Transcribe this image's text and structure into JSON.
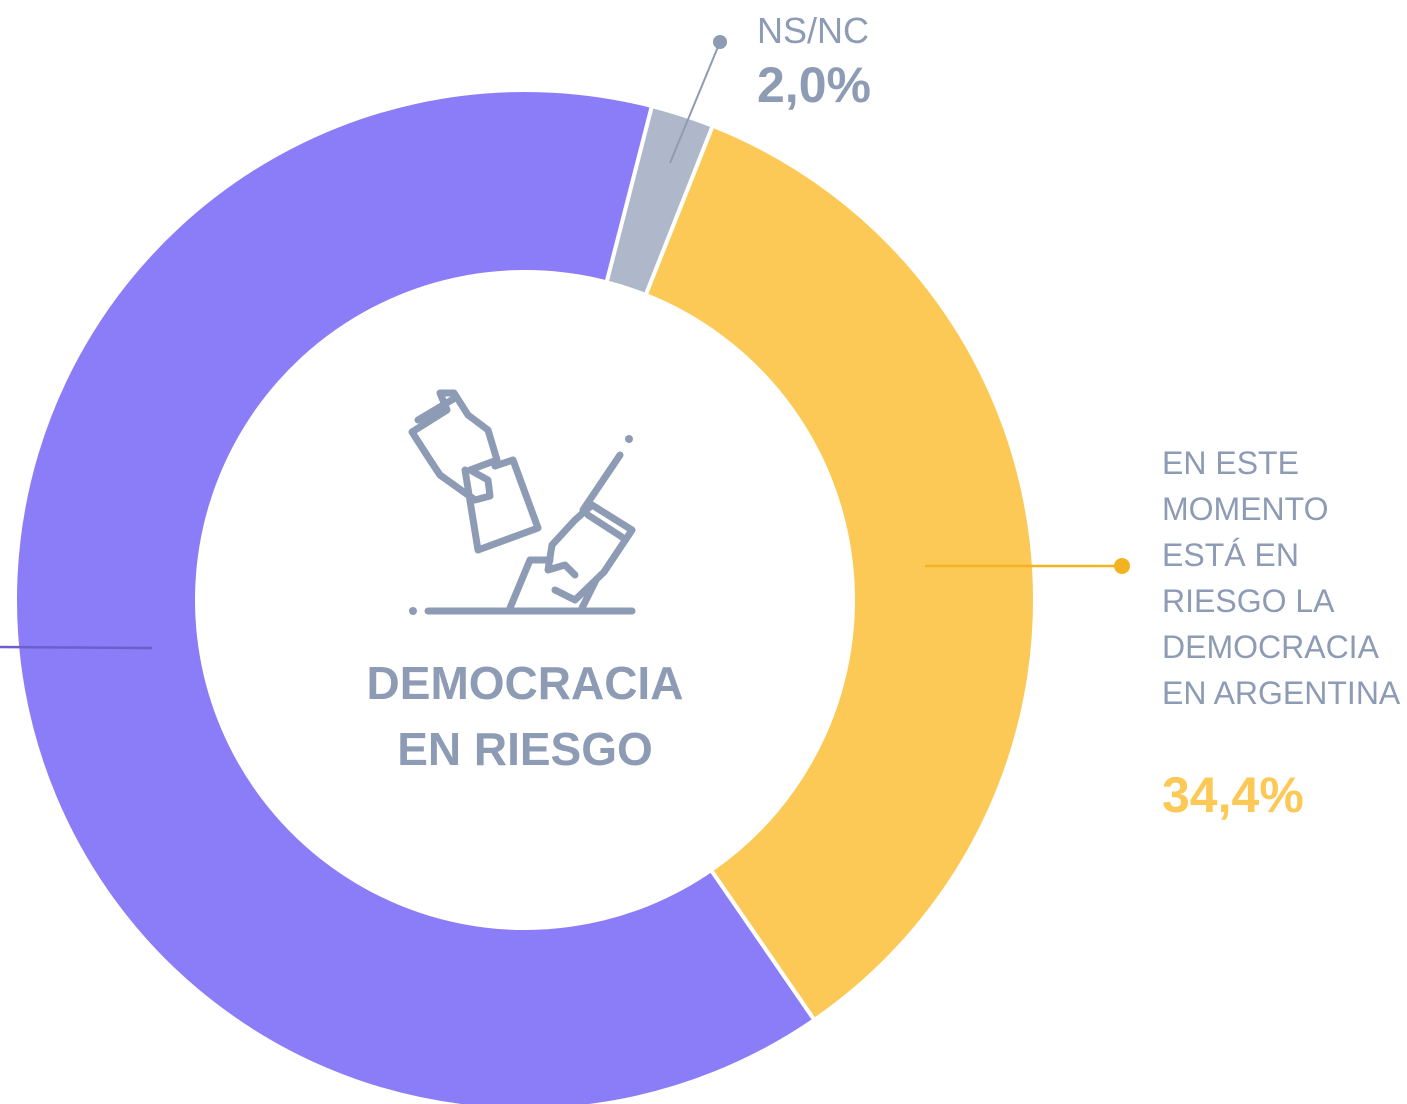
{
  "chart_data": {
    "type": "donut",
    "title": "DEMOCRACIA EN RIESGO",
    "categories": [
      "NS/NC",
      "EN ESTE MOMENTO ESTÁ EN RIESGO LA DEMOCRACIA EN ARGENTINA",
      null
    ],
    "values": [
      2.0,
      34.4,
      63.6
    ],
    "value_labels": [
      "2,0%",
      "34,4%",
      null
    ],
    "colors": [
      "#aeb8ca",
      "#fcc956",
      "#8b7cf7"
    ]
  }
}
